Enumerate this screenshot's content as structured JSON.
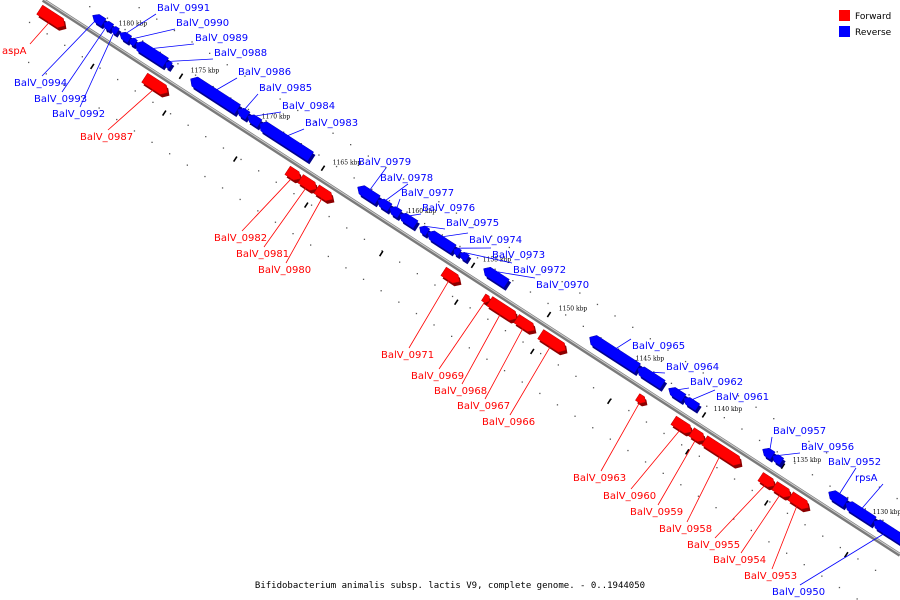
{
  "caption": "Bifidobacterium animalis subsp. lactis V9, complete genome. - 0..1944050",
  "legend": [
    {
      "label": "Forward",
      "color": "#ff0000"
    },
    {
      "label": "Reverse",
      "color": "#0000ff"
    }
  ],
  "colors": {
    "forward": "#ff0000",
    "reverse": "#0000ff",
    "backbone": "#888888"
  },
  "scale_labels": [
    "1180 kbp",
    "1175 kbp",
    "1170 kbp",
    "1165 kbp",
    "1160 kbp",
    "1155 kbp",
    "1150 kbp",
    "1145 kbp",
    "1140 kbp",
    "1135 kbp",
    "1130 kbp"
  ],
  "genes": [
    {
      "name": "aspA",
      "strand": "forward"
    },
    {
      "name": "BalV_0994",
      "strand": "reverse"
    },
    {
      "name": "BalV_0993",
      "strand": "reverse"
    },
    {
      "name": "BalV_0992",
      "strand": "reverse"
    },
    {
      "name": "BalV_0991",
      "strand": "reverse"
    },
    {
      "name": "BalV_0990",
      "strand": "reverse"
    },
    {
      "name": "BalV_0989",
      "strand": "reverse"
    },
    {
      "name": "BalV_0988",
      "strand": "reverse"
    },
    {
      "name": "BalV_0987",
      "strand": "forward"
    },
    {
      "name": "BalV_0986",
      "strand": "reverse"
    },
    {
      "name": "BalV_0985",
      "strand": "reverse"
    },
    {
      "name": "BalV_0984",
      "strand": "reverse"
    },
    {
      "name": "BalV_0983",
      "strand": "reverse"
    },
    {
      "name": "BalV_0982",
      "strand": "forward"
    },
    {
      "name": "BalV_0981",
      "strand": "forward"
    },
    {
      "name": "BalV_0980",
      "strand": "forward"
    },
    {
      "name": "BalV_0979",
      "strand": "reverse"
    },
    {
      "name": "BalV_0978",
      "strand": "reverse"
    },
    {
      "name": "BalV_0977",
      "strand": "reverse"
    },
    {
      "name": "BalV_0976",
      "strand": "reverse"
    },
    {
      "name": "BalV_0975",
      "strand": "reverse"
    },
    {
      "name": "BalV_0974",
      "strand": "reverse"
    },
    {
      "name": "BalV_0973",
      "strand": "reverse"
    },
    {
      "name": "BalV_0972",
      "strand": "reverse"
    },
    {
      "name": "BalV_0970",
      "strand": "reverse"
    },
    {
      "name": "BalV_0971",
      "strand": "forward"
    },
    {
      "name": "BalV_0969",
      "strand": "forward"
    },
    {
      "name": "BalV_0968",
      "strand": "forward"
    },
    {
      "name": "BalV_0967",
      "strand": "forward"
    },
    {
      "name": "BalV_0966",
      "strand": "forward"
    },
    {
      "name": "BalV_0965",
      "strand": "reverse"
    },
    {
      "name": "BalV_0964",
      "strand": "reverse"
    },
    {
      "name": "BalV_0962",
      "strand": "reverse"
    },
    {
      "name": "BalV_0961",
      "strand": "reverse"
    },
    {
      "name": "BalV_0963",
      "strand": "forward"
    },
    {
      "name": "BalV_0960",
      "strand": "forward"
    },
    {
      "name": "BalV_0959",
      "strand": "forward"
    },
    {
      "name": "BalV_0958",
      "strand": "forward"
    },
    {
      "name": "BalV_0957",
      "strand": "reverse"
    },
    {
      "name": "BalV_0956",
      "strand": "reverse"
    },
    {
      "name": "BalV_0952",
      "strand": "reverse"
    },
    {
      "name": "rpsA",
      "strand": "reverse"
    },
    {
      "name": "BalV_0955",
      "strand": "forward"
    },
    {
      "name": "BalV_0954",
      "strand": "forward"
    },
    {
      "name": "BalV_0953",
      "strand": "forward"
    },
    {
      "name": "BalV_0950",
      "strand": "reverse"
    }
  ]
}
